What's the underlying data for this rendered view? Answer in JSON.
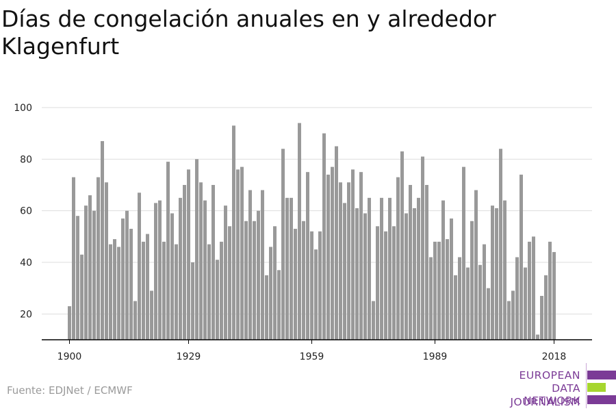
{
  "title": "Días de congelación anuales en y alrededor Klagenfurt",
  "source": "Fuente: EDJNet / ECMWF",
  "logo": {
    "line1": "EUROPEAN",
    "line2": "DATA JOURNALISM",
    "line3": "NETWORK",
    "colors": {
      "purple": "#7b3b96",
      "green": "#a6d62e"
    }
  },
  "colors": {
    "bar": "#999999",
    "grid": "#dddddd",
    "axis": "#000000",
    "text": "#222222"
  },
  "chart_data": {
    "type": "bar",
    "title": "Días de congelación anuales en y alrededor Klagenfurt",
    "xlabel": "",
    "ylabel": "",
    "ylim": [
      10,
      100
    ],
    "yticks": [
      20,
      40,
      60,
      80,
      100
    ],
    "xticks": [
      1900,
      1929,
      1959,
      1989,
      2018
    ],
    "grid": true,
    "categories": [
      1900,
      1901,
      1902,
      1903,
      1904,
      1905,
      1906,
      1907,
      1908,
      1909,
      1910,
      1911,
      1912,
      1913,
      1914,
      1915,
      1916,
      1917,
      1918,
      1919,
      1920,
      1921,
      1922,
      1923,
      1924,
      1925,
      1926,
      1927,
      1928,
      1929,
      1930,
      1931,
      1932,
      1933,
      1934,
      1935,
      1936,
      1937,
      1938,
      1939,
      1940,
      1941,
      1942,
      1943,
      1944,
      1945,
      1946,
      1947,
      1948,
      1949,
      1950,
      1951,
      1952,
      1953,
      1954,
      1955,
      1956,
      1957,
      1958,
      1959,
      1960,
      1961,
      1962,
      1963,
      1964,
      1965,
      1966,
      1967,
      1968,
      1969,
      1970,
      1971,
      1972,
      1973,
      1974,
      1975,
      1976,
      1977,
      1978,
      1979,
      1980,
      1981,
      1982,
      1983,
      1984,
      1985,
      1986,
      1987,
      1988,
      1989,
      1990,
      1991,
      1992,
      1993,
      1994,
      1995,
      1996,
      1997,
      1998,
      1999,
      2000,
      2001,
      2002,
      2003,
      2004,
      2005,
      2006,
      2007,
      2008,
      2009,
      2010,
      2011,
      2012,
      2013,
      2014,
      2015,
      2016,
      2017,
      2018
    ],
    "values": [
      23,
      73,
      58,
      43,
      62,
      66,
      60,
      73,
      87,
      71,
      47,
      49,
      46,
      57,
      60,
      53,
      25,
      67,
      48,
      51,
      29,
      63,
      64,
      48,
      79,
      59,
      47,
      65,
      70,
      76,
      40,
      80,
      71,
      64,
      47,
      70,
      41,
      48,
      62,
      54,
      93,
      76,
      77,
      56,
      68,
      56,
      60,
      68,
      35,
      46,
      54,
      37,
      84,
      65,
      65,
      53,
      94,
      56,
      75,
      52,
      45,
      52,
      90,
      74,
      77,
      85,
      71,
      63,
      71,
      76,
      61,
      75,
      59,
      65,
      25,
      54,
      65,
      52,
      65,
      54,
      73,
      83,
      59,
      70,
      61,
      65,
      81,
      70,
      42,
      48,
      48,
      64,
      49,
      57,
      35,
      42,
      77,
      38,
      56,
      68,
      39,
      47,
      30,
      62,
      61,
      84,
      64,
      25,
      29,
      42,
      74,
      38,
      48,
      50,
      12,
      27,
      35,
      48,
      44
    ]
  }
}
